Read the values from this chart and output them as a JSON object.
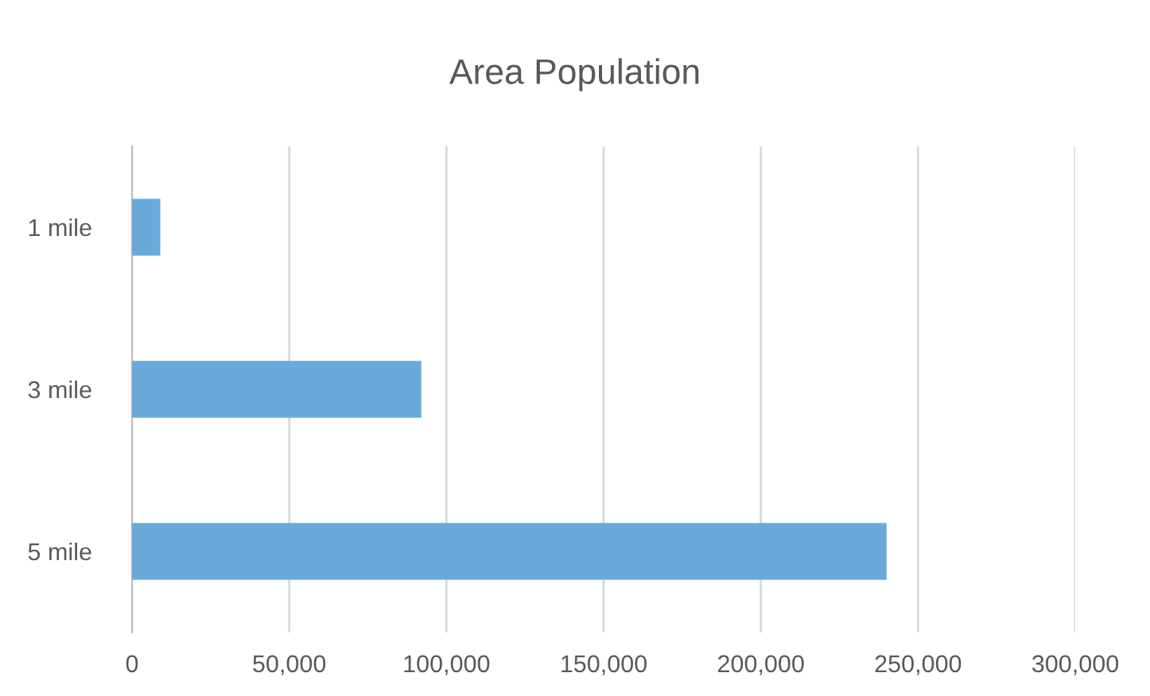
{
  "chart_data": {
    "type": "bar",
    "orientation": "horizontal",
    "title": "Area Population",
    "categories": [
      "1 mile",
      "3 mile",
      "5 mile"
    ],
    "values": [
      9000,
      92000,
      240000
    ],
    "color": "#6aaadb",
    "xlim": [
      0,
      300000
    ],
    "xticks": [
      {
        "value": 0,
        "label": "0"
      },
      {
        "value": 50000,
        "label": "50,000"
      },
      {
        "value": 100000,
        "label": "100,000"
      },
      {
        "value": 150000,
        "label": "150,000"
      },
      {
        "value": 200000,
        "label": "200,000"
      },
      {
        "value": 250000,
        "label": "250,000"
      },
      {
        "value": 300000,
        "label": "300,000"
      }
    ],
    "grid": "x",
    "legend": false
  }
}
